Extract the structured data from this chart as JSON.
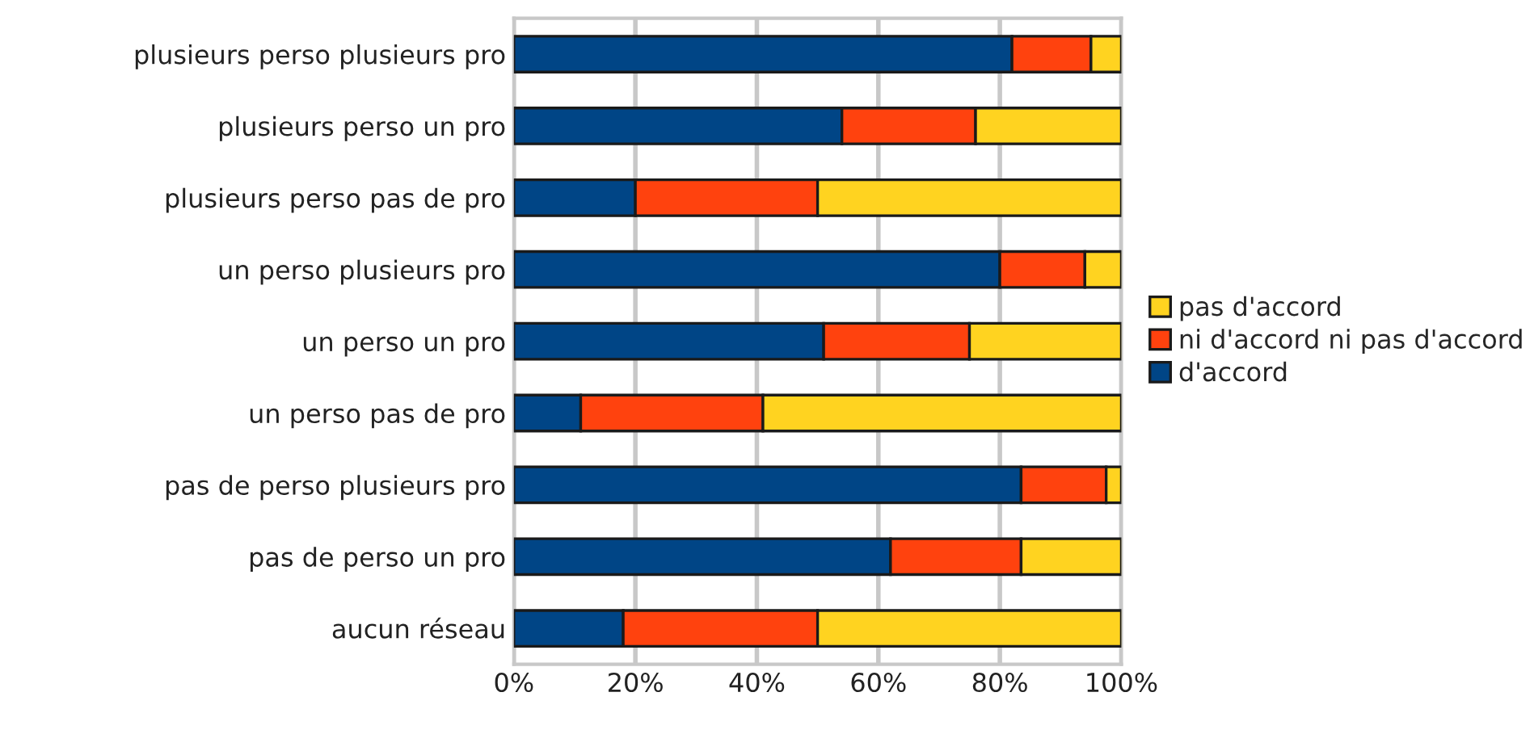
{
  "chart_data": {
    "type": "bar",
    "orientation": "horizontal",
    "stacked": true,
    "categories": [
      "plusieurs perso plusieurs pro",
      "plusieurs perso un pro",
      "plusieurs perso pas de pro",
      "un perso plusieurs pro",
      "un perso un pro",
      "un perso pas de pro",
      "pas de perso plusieurs pro",
      "pas de perso un pro",
      "aucun réseau"
    ],
    "series": [
      {
        "name": "d'accord",
        "color": "#004586",
        "values": [
          82,
          54,
          20,
          80,
          51,
          11,
          83.5,
          62,
          18
        ]
      },
      {
        "name": "ni d'accord ni pas d'accord",
        "color": "#ff420e",
        "values": [
          13,
          22,
          30,
          14,
          24,
          30,
          14,
          21.5,
          32
        ]
      },
      {
        "name": "pas d'accord",
        "color": "#ffd320",
        "values": [
          5,
          24,
          50,
          6,
          25,
          59,
          2.5,
          16.5,
          50
        ]
      }
    ],
    "xlim": [
      0,
      100
    ],
    "xticks": [
      {
        "value": 0,
        "label": "0%"
      },
      {
        "value": 20,
        "label": "20%"
      },
      {
        "value": 40,
        "label": "40%"
      },
      {
        "value": 60,
        "label": "60%"
      },
      {
        "value": 80,
        "label": "80%"
      },
      {
        "value": 100,
        "label": "100%"
      }
    ],
    "grid": "x",
    "legend": "right"
  }
}
